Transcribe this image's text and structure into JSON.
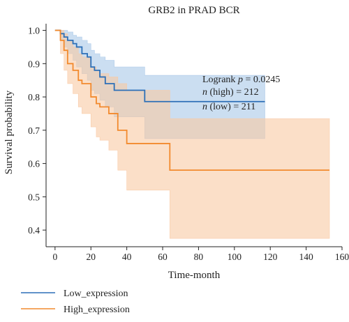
{
  "chart_data": {
    "type": "line",
    "subtype": "kaplan-meier",
    "title": "GRB2 in PRAD BCR",
    "xlabel": "Time-month",
    "ylabel": "Survival probability",
    "xlim": [
      -5,
      160
    ],
    "ylim": [
      0.35,
      1.02
    ],
    "xticks": [
      0,
      20,
      40,
      60,
      80,
      100,
      120,
      140,
      160
    ],
    "yticks": [
      0.4,
      0.5,
      0.6,
      0.7,
      0.8,
      0.9,
      1.0
    ],
    "grid": false,
    "legend_position": "bottom-left",
    "annotation": {
      "line1_prefix": "Logrank ",
      "line1_italic": "p",
      "line1_value": " = 0.0245",
      "line2_italic": "n",
      "line2_value": " (high) = 212",
      "line3_italic": "n",
      "line3_value": " (low) = 211"
    },
    "series": [
      {
        "name": "Low_expression",
        "color": "#2c6fb7",
        "fill": "#a9c8e8",
        "x": [
          0,
          3,
          5,
          7,
          10,
          12,
          15,
          18,
          20,
          22,
          25,
          28,
          33,
          36,
          41,
          45,
          50,
          117
        ],
        "y": [
          1.0,
          0.99,
          0.98,
          0.97,
          0.96,
          0.95,
          0.93,
          0.92,
          0.89,
          0.88,
          0.86,
          0.84,
          0.82,
          0.82,
          0.82,
          0.82,
          0.786,
          0.786
        ],
        "upper": [
          1.0,
          1.0,
          1.0,
          0.995,
          0.985,
          0.98,
          0.97,
          0.96,
          0.94,
          0.93,
          0.92,
          0.91,
          0.89,
          0.89,
          0.89,
          0.89,
          0.865,
          0.865
        ],
        "lower": [
          1.0,
          0.97,
          0.95,
          0.93,
          0.91,
          0.89,
          0.87,
          0.85,
          0.82,
          0.81,
          0.79,
          0.77,
          0.74,
          0.74,
          0.74,
          0.74,
          0.675,
          0.675
        ]
      },
      {
        "name": "High_expression",
        "color": "#f28a2e",
        "fill": "#f9c9a3",
        "x": [
          0,
          3,
          5,
          7,
          10,
          13,
          15,
          20,
          23,
          25,
          30,
          35,
          40,
          45,
          50,
          64,
          153
        ],
        "y": [
          1.0,
          0.97,
          0.94,
          0.9,
          0.88,
          0.85,
          0.84,
          0.8,
          0.78,
          0.77,
          0.75,
          0.7,
          0.66,
          0.66,
          0.66,
          0.58,
          0.58
        ],
        "upper": [
          1.0,
          1.0,
          0.99,
          0.97,
          0.95,
          0.93,
          0.92,
          0.89,
          0.88,
          0.87,
          0.86,
          0.84,
          0.82,
          0.82,
          0.82,
          0.735,
          0.735
        ],
        "lower": [
          1.0,
          0.93,
          0.88,
          0.84,
          0.81,
          0.77,
          0.75,
          0.71,
          0.68,
          0.67,
          0.64,
          0.58,
          0.52,
          0.52,
          0.52,
          0.375,
          0.375
        ]
      }
    ]
  }
}
